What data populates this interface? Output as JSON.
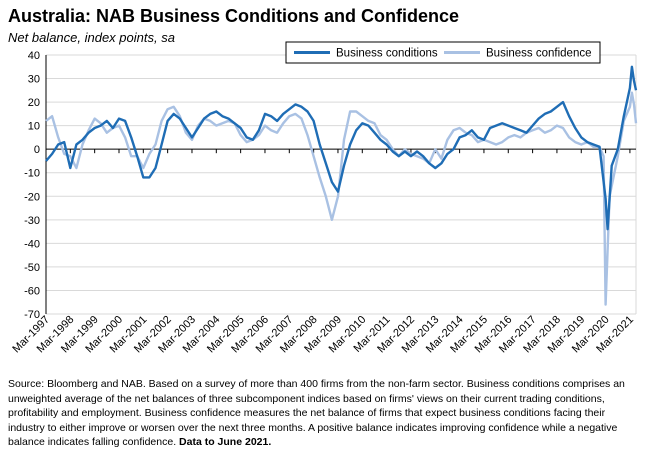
{
  "title": "Australia: NAB Business Conditions and Confidence",
  "subtitle": "Net balance, index points, sa",
  "source_text": "Source: Bloomberg and NAB. Based on a survey of more than 400 firms from the non-farm sector. Business conditions comprises an unweighted average of the net balances of three subcomponent indices based on firms' views on their current trading conditions, profitability and employment. Business confidence measures the net balance of firms that expect business conditions facing their industry to either improve or worsen over the next three months. A positive balance indicates improving confidence while a negative balance indicates falling confidence.",
  "source_bold": "Data to June 2021.",
  "colors": {
    "conditions": "#1f6db5",
    "confidence": "#a9c1e3",
    "grid": "#d9d9d9",
    "axis": "#000000"
  },
  "chart_data": {
    "type": "line",
    "title": "Australia: NAB Business Conditions and Confidence",
    "subtitle": "Net balance, index points, sa",
    "ylim": [
      -70,
      40
    ],
    "yticks": [
      -70,
      -60,
      -50,
      -40,
      -30,
      -20,
      -10,
      0,
      10,
      20,
      30,
      40
    ],
    "x_range": [
      "Mar-1997",
      "Jun-2021"
    ],
    "x_tick_labels": [
      "Mar-1997",
      "Mar-1998",
      "Mar-1999",
      "Mar-2000",
      "Mar-2001",
      "Mar-2002",
      "Mar-2003",
      "Mar-2004",
      "Mar-2005",
      "Mar-2006",
      "Mar-2007",
      "Mar-2008",
      "Mar-2009",
      "Mar-2010",
      "Mar-2011",
      "Mar-2012",
      "Mar-2013",
      "Mar-2014",
      "Mar-2015",
      "Mar-2016",
      "Mar-2017",
      "Mar-2018",
      "Mar-2019",
      "Mar-2020",
      "Mar-2021"
    ],
    "grid": "horizontal",
    "legend_position": "top-right",
    "series": [
      {
        "name": "Business conditions",
        "points": [
          [
            "1997-03",
            -5
          ],
          [
            "1997-06",
            -2
          ],
          [
            "1997-09",
            2
          ],
          [
            "1997-12",
            3
          ],
          [
            "1998-03",
            -8
          ],
          [
            "1998-06",
            2
          ],
          [
            "1998-09",
            4
          ],
          [
            "1998-12",
            7
          ],
          [
            "1999-03",
            9
          ],
          [
            "1999-06",
            10
          ],
          [
            "1999-09",
            12
          ],
          [
            "1999-12",
            9
          ],
          [
            "2000-03",
            13
          ],
          [
            "2000-06",
            12
          ],
          [
            "2000-09",
            5
          ],
          [
            "2000-12",
            -3
          ],
          [
            "2001-03",
            -12
          ],
          [
            "2001-06",
            -12
          ],
          [
            "2001-09",
            -8
          ],
          [
            "2001-12",
            2
          ],
          [
            "2002-03",
            12
          ],
          [
            "2002-06",
            15
          ],
          [
            "2002-09",
            13
          ],
          [
            "2002-12",
            9
          ],
          [
            "2003-03",
            5
          ],
          [
            "2003-06",
            9
          ],
          [
            "2003-09",
            13
          ],
          [
            "2003-12",
            15
          ],
          [
            "2004-03",
            16
          ],
          [
            "2004-06",
            14
          ],
          [
            "2004-09",
            13
          ],
          [
            "2004-12",
            11
          ],
          [
            "2005-03",
            9
          ],
          [
            "2005-06",
            5
          ],
          [
            "2005-09",
            4
          ],
          [
            "2005-12",
            8
          ],
          [
            "2006-03",
            15
          ],
          [
            "2006-06",
            14
          ],
          [
            "2006-09",
            12
          ],
          [
            "2006-12",
            15
          ],
          [
            "2007-03",
            17
          ],
          [
            "2007-06",
            19
          ],
          [
            "2007-09",
            18
          ],
          [
            "2007-12",
            16
          ],
          [
            "2008-03",
            12
          ],
          [
            "2008-06",
            2
          ],
          [
            "2008-09",
            -6
          ],
          [
            "2008-12",
            -14
          ],
          [
            "2009-03",
            -18
          ],
          [
            "2009-06",
            -7
          ],
          [
            "2009-09",
            2
          ],
          [
            "2009-12",
            8
          ],
          [
            "2010-03",
            11
          ],
          [
            "2010-06",
            10
          ],
          [
            "2010-09",
            7
          ],
          [
            "2010-12",
            4
          ],
          [
            "2011-03",
            2
          ],
          [
            "2011-06",
            -1
          ],
          [
            "2011-09",
            -3
          ],
          [
            "2011-12",
            -1
          ],
          [
            "2012-03",
            -3
          ],
          [
            "2012-06",
            -1
          ],
          [
            "2012-09",
            -3
          ],
          [
            "2012-12",
            -6
          ],
          [
            "2013-03",
            -8
          ],
          [
            "2013-06",
            -6
          ],
          [
            "2013-09",
            -2
          ],
          [
            "2013-12",
            0
          ],
          [
            "2014-03",
            5
          ],
          [
            "2014-06",
            6
          ],
          [
            "2014-09",
            8
          ],
          [
            "2014-12",
            5
          ],
          [
            "2015-03",
            4
          ],
          [
            "2015-06",
            9
          ],
          [
            "2015-09",
            10
          ],
          [
            "2015-12",
            11
          ],
          [
            "2016-03",
            10
          ],
          [
            "2016-06",
            9
          ],
          [
            "2016-09",
            8
          ],
          [
            "2016-12",
            7
          ],
          [
            "2017-03",
            10
          ],
          [
            "2017-06",
            13
          ],
          [
            "2017-09",
            15
          ],
          [
            "2017-12",
            16
          ],
          [
            "2018-03",
            18
          ],
          [
            "2018-06",
            20
          ],
          [
            "2018-09",
            14
          ],
          [
            "2018-12",
            9
          ],
          [
            "2019-03",
            5
          ],
          [
            "2019-06",
            3
          ],
          [
            "2019-09",
            2
          ],
          [
            "2019-12",
            1
          ],
          [
            "2020-03",
            -21
          ],
          [
            "2020-04",
            -34
          ],
          [
            "2020-06",
            -7
          ],
          [
            "2020-09",
            0
          ],
          [
            "2020-12",
            14
          ],
          [
            "2021-03",
            26
          ],
          [
            "2021-04",
            35
          ],
          [
            "2021-05",
            29
          ],
          [
            "2021-06",
            25
          ]
        ]
      },
      {
        "name": "Business confidence",
        "points": [
          [
            "1997-03",
            12
          ],
          [
            "1997-06",
            14
          ],
          [
            "1997-09",
            5
          ],
          [
            "1997-12",
            -2
          ],
          [
            "1998-03",
            -3
          ],
          [
            "1998-06",
            -8
          ],
          [
            "1998-09",
            2
          ],
          [
            "1998-12",
            8
          ],
          [
            "1999-03",
            13
          ],
          [
            "1999-06",
            11
          ],
          [
            "1999-09",
            7
          ],
          [
            "1999-12",
            9
          ],
          [
            "2000-03",
            10
          ],
          [
            "2000-06",
            5
          ],
          [
            "2000-09",
            -3
          ],
          [
            "2000-12",
            -3
          ],
          [
            "2001-03",
            -8
          ],
          [
            "2001-06",
            -2
          ],
          [
            "2001-09",
            2
          ],
          [
            "2001-12",
            12
          ],
          [
            "2002-03",
            17
          ],
          [
            "2002-06",
            18
          ],
          [
            "2002-09",
            14
          ],
          [
            "2002-12",
            7
          ],
          [
            "2003-03",
            4
          ],
          [
            "2003-06",
            10
          ],
          [
            "2003-09",
            13
          ],
          [
            "2003-12",
            12
          ],
          [
            "2004-03",
            10
          ],
          [
            "2004-06",
            11
          ],
          [
            "2004-09",
            12
          ],
          [
            "2004-12",
            11
          ],
          [
            "2005-03",
            6
          ],
          [
            "2005-06",
            3
          ],
          [
            "2005-09",
            4
          ],
          [
            "2005-12",
            6
          ],
          [
            "2006-03",
            10
          ],
          [
            "2006-06",
            8
          ],
          [
            "2006-09",
            7
          ],
          [
            "2006-12",
            11
          ],
          [
            "2007-03",
            14
          ],
          [
            "2007-06",
            15
          ],
          [
            "2007-09",
            13
          ],
          [
            "2007-12",
            6
          ],
          [
            "2008-03",
            -3
          ],
          [
            "2008-06",
            -12
          ],
          [
            "2008-09",
            -20
          ],
          [
            "2008-12",
            -30
          ],
          [
            "2009-03",
            -20
          ],
          [
            "2009-06",
            4
          ],
          [
            "2009-09",
            16
          ],
          [
            "2009-12",
            16
          ],
          [
            "2010-03",
            14
          ],
          [
            "2010-06",
            12
          ],
          [
            "2010-09",
            11
          ],
          [
            "2010-12",
            6
          ],
          [
            "2011-03",
            4
          ],
          [
            "2011-06",
            0
          ],
          [
            "2011-09",
            -3
          ],
          [
            "2011-12",
            0
          ],
          [
            "2012-03",
            -2
          ],
          [
            "2012-06",
            -3
          ],
          [
            "2012-09",
            -4
          ],
          [
            "2012-12",
            -6
          ],
          [
            "2013-03",
            0
          ],
          [
            "2013-06",
            -4
          ],
          [
            "2013-09",
            4
          ],
          [
            "2013-12",
            8
          ],
          [
            "2014-03",
            9
          ],
          [
            "2014-06",
            7
          ],
          [
            "2014-09",
            6
          ],
          [
            "2014-12",
            3
          ],
          [
            "2015-03",
            4
          ],
          [
            "2015-06",
            3
          ],
          [
            "2015-09",
            2
          ],
          [
            "2015-12",
            3
          ],
          [
            "2016-03",
            5
          ],
          [
            "2016-06",
            6
          ],
          [
            "2016-09",
            5
          ],
          [
            "2016-12",
            7
          ],
          [
            "2017-03",
            8
          ],
          [
            "2017-06",
            9
          ],
          [
            "2017-09",
            7
          ],
          [
            "2017-12",
            8
          ],
          [
            "2018-03",
            10
          ],
          [
            "2018-06",
            9
          ],
          [
            "2018-09",
            5
          ],
          [
            "2018-12",
            3
          ],
          [
            "2019-03",
            2
          ],
          [
            "2019-06",
            3
          ],
          [
            "2019-09",
            1
          ],
          [
            "2019-12",
            1
          ],
          [
            "2020-02",
            -3
          ],
          [
            "2020-03",
            -66
          ],
          [
            "2020-05",
            -20
          ],
          [
            "2020-09",
            -3
          ],
          [
            "2020-12",
            12
          ],
          [
            "2021-03",
            18
          ],
          [
            "2021-04",
            24
          ],
          [
            "2021-05",
            19
          ],
          [
            "2021-06",
            11
          ]
        ]
      }
    ]
  }
}
